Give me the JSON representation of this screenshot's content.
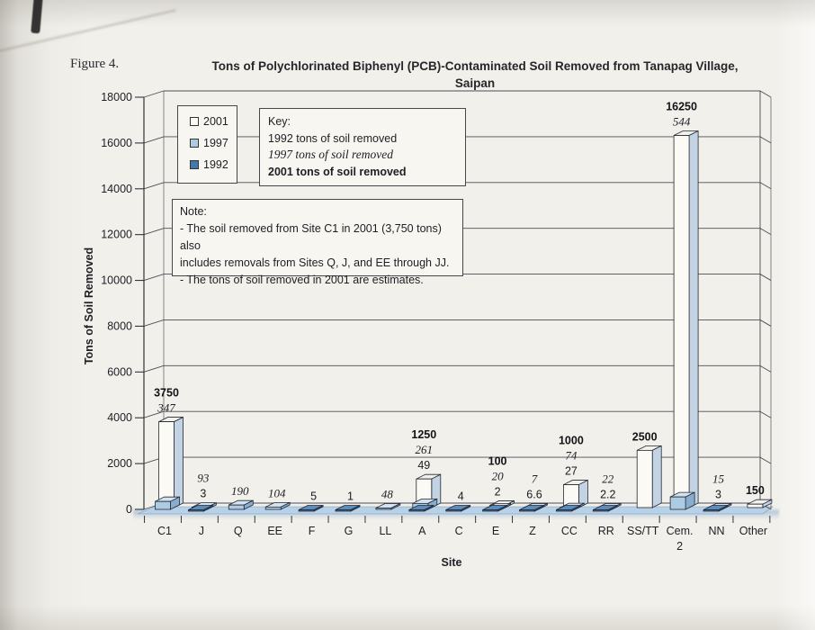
{
  "figure_label": "Figure 4.",
  "title": {
    "line1": "Tons of Polychlorinated Biphenyl (PCB)-Contaminated Soil Removed from Tanapag Village,",
    "line2": "Saipan"
  },
  "legend": {
    "items": [
      {
        "label": "2001",
        "color": "#fbfaf5"
      },
      {
        "label": "1997",
        "color": "#aecbe4"
      },
      {
        "label": "1992",
        "color": "#4479af"
      }
    ]
  },
  "key_box": {
    "heading": "Key:",
    "lines": [
      {
        "text": "1992 tons of soil removed",
        "style": "normal"
      },
      {
        "text": "1997 tons of soil removed",
        "style": "italic"
      },
      {
        "text": "2001 tons of soil removed",
        "style": "bold"
      }
    ]
  },
  "note_box": {
    "heading": "Note:",
    "lines": [
      "- The soil removed from Site C1 in 2001 (3,750 tons) also",
      "includes removals from Sites Q, J, and EE through JJ.",
      "- The tons of soil removed in 2001 are estimates."
    ]
  },
  "chart_data": {
    "type": "bar",
    "title": "Tons of Polychlorinated Biphenyl (PCB)-Contaminated Soil Removed from Tanapag Village, Saipan",
    "xlabel": "Site",
    "ylabel": "Tons of Soil Removed",
    "ylim": [
      0,
      18000
    ],
    "ytick_step": 2000,
    "grid": true,
    "legend_position": "upper-left",
    "style_3d": true,
    "categories": [
      "C1",
      "J",
      "Q",
      "EE",
      "F",
      "G",
      "LL",
      "A",
      "C",
      "E",
      "Z",
      "CC",
      "RR",
      "SS/TT",
      "Cem. 2",
      "NN",
      "Other"
    ],
    "series": [
      {
        "name": "2001",
        "label_style": "bold",
        "colors": {
          "front": "#fbfaf5",
          "side": "#c2d3e4",
          "top": "#eff1ec"
        },
        "values": [
          3750,
          null,
          null,
          null,
          null,
          null,
          null,
          1250,
          null,
          100,
          null,
          1000,
          null,
          2500,
          16250,
          null,
          150
        ]
      },
      {
        "name": "1997",
        "label_style": "italic",
        "colors": {
          "front": "#aecbe4",
          "side": "#87add1",
          "top": "#d3e3f2"
        },
        "values": [
          347,
          93,
          190,
          104,
          null,
          null,
          48,
          261,
          null,
          20,
          7,
          74,
          22,
          null,
          544,
          15,
          null
        ]
      },
      {
        "name": "1992",
        "label_style": "normal",
        "colors": {
          "front": "#3f74ab",
          "side": "#2f5f94",
          "top": "#5d8cbb"
        },
        "values": [
          null,
          3,
          null,
          null,
          5,
          1,
          null,
          49,
          4,
          2,
          6.6,
          27,
          2.2,
          null,
          null,
          3,
          null
        ]
      }
    ]
  }
}
